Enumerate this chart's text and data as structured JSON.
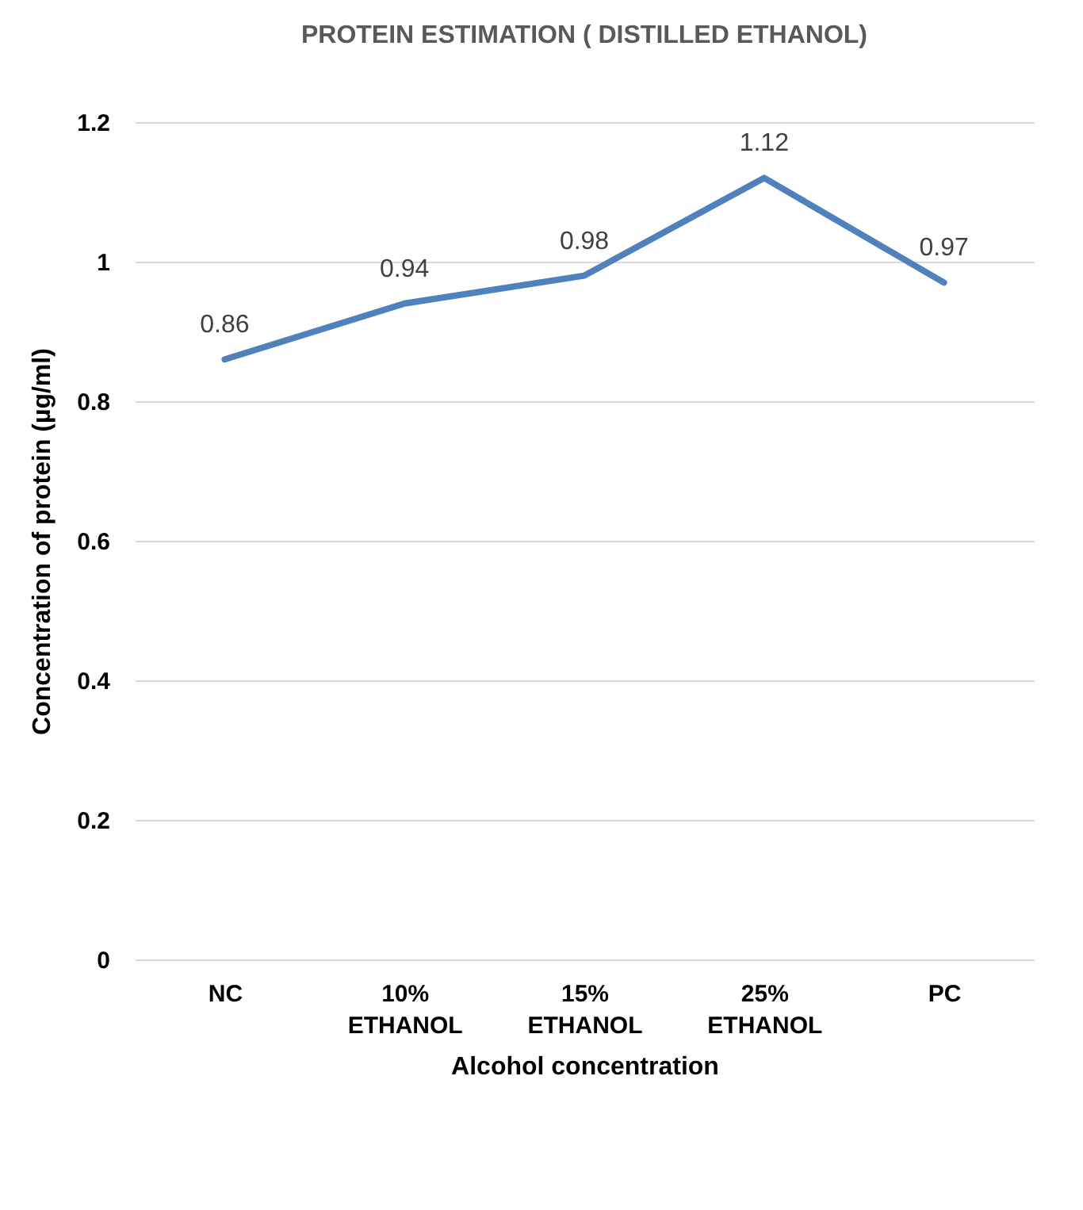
{
  "chart_data": {
    "type": "line",
    "title": "PROTEIN ESTIMATION ( DISTILLED ETHANOL)",
    "xlabel": "Alcohol concentration",
    "ylabel": "Concentration of protein (µg/ml)",
    "categories": [
      "NC",
      "10% ETHANOL",
      "15% ETHANOL",
      "25% ETHANOL",
      "PC"
    ],
    "series": [
      {
        "color": "#4f81bd",
        "values": [
          0.86,
          0.94,
          0.98,
          1.12,
          0.97
        ]
      }
    ],
    "ylim": [
      0,
      1.2
    ],
    "yticks": [
      0,
      0.2,
      0.4,
      0.6,
      0.8,
      1,
      1.2
    ],
    "grid": "y",
    "data_labels": true,
    "marker": "none",
    "line_style": "solid"
  }
}
